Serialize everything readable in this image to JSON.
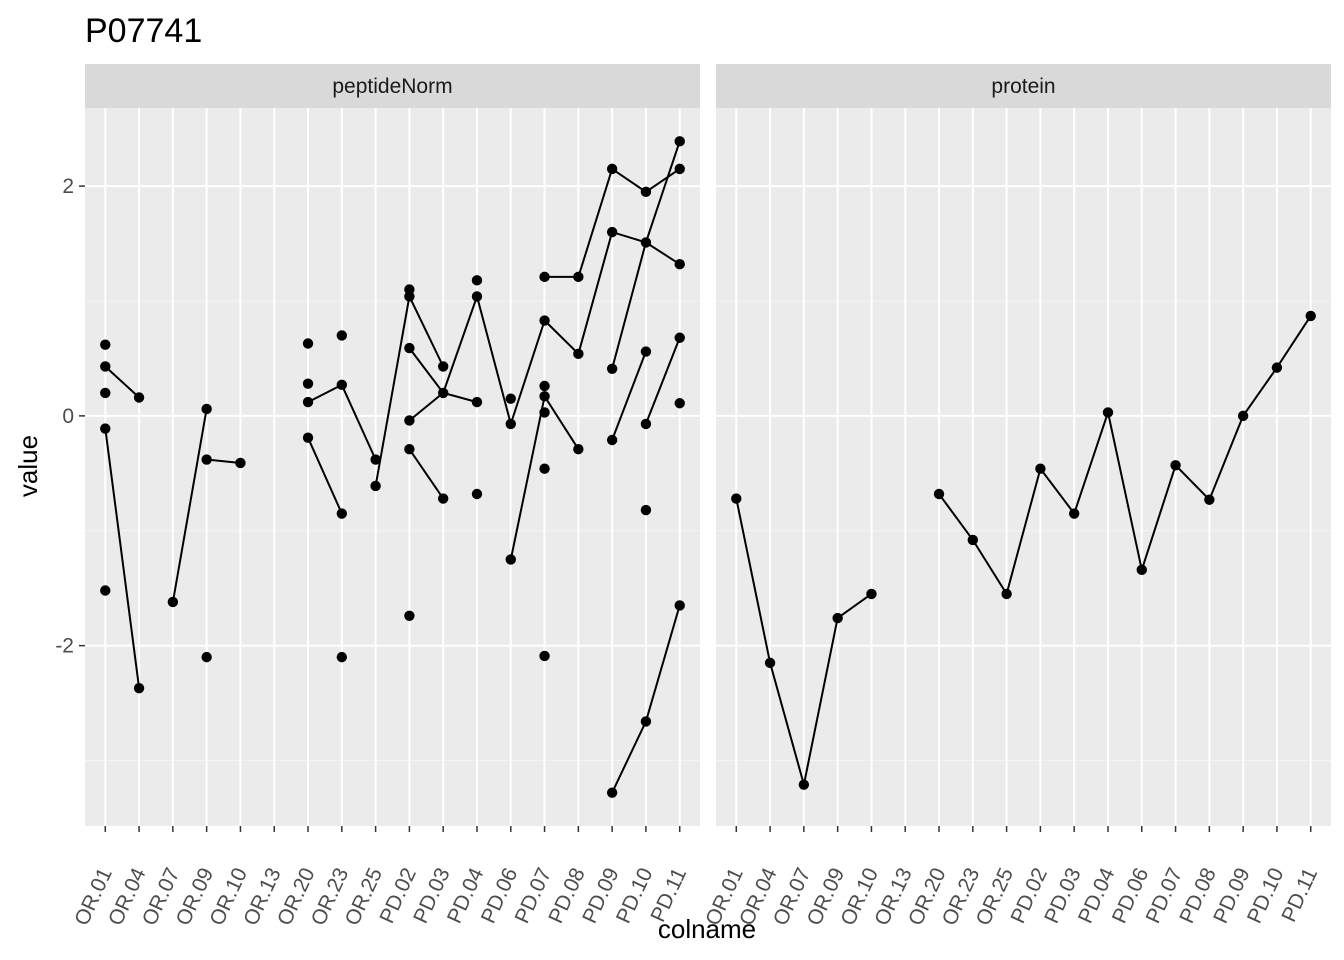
{
  "title": "P07741",
  "chart_data": {
    "type": "scatter",
    "title": "P07741",
    "xlabel": "colname",
    "ylabel": "value",
    "ylim": [
      -3.57,
      2.68
    ],
    "yticks": [
      -2,
      0,
      2
    ],
    "grid": true,
    "categories": [
      "OR.01",
      "OR.04",
      "OR.07",
      "OR.09",
      "OR.10",
      "OR.13",
      "OR.20",
      "OR.23",
      "OR.25",
      "PD.02",
      "PD.03",
      "PD.04",
      "PD.06",
      "PD.07",
      "PD.08",
      "PD.09",
      "PD.10",
      "PD.11"
    ],
    "panels": [
      {
        "name": "peptideNorm",
        "points": [
          {
            "x": "OR.01",
            "y": 0.62
          },
          {
            "x": "OR.01",
            "y": 0.43
          },
          {
            "x": "OR.01",
            "y": 0.2
          },
          {
            "x": "OR.01",
            "y": -0.11
          },
          {
            "x": "OR.01",
            "y": -1.52
          },
          {
            "x": "OR.04",
            "y": 0.16
          },
          {
            "x": "OR.04",
            "y": -2.37
          },
          {
            "x": "OR.07",
            "y": -1.62
          },
          {
            "x": "OR.09",
            "y": 0.06
          },
          {
            "x": "OR.09",
            "y": -0.38
          },
          {
            "x": "OR.09",
            "y": -2.1
          },
          {
            "x": "OR.10",
            "y": -0.41
          },
          {
            "x": "OR.20",
            "y": 0.63
          },
          {
            "x": "OR.20",
            "y": 0.28
          },
          {
            "x": "OR.20",
            "y": 0.12
          },
          {
            "x": "OR.20",
            "y": -0.19
          },
          {
            "x": "OR.23",
            "y": 0.7
          },
          {
            "x": "OR.23",
            "y": 0.27
          },
          {
            "x": "OR.23",
            "y": -0.85
          },
          {
            "x": "OR.23",
            "y": -2.1
          },
          {
            "x": "OR.25",
            "y": -0.38
          },
          {
            "x": "OR.25",
            "y": -0.61
          },
          {
            "x": "PD.02",
            "y": 1.1
          },
          {
            "x": "PD.02",
            "y": 1.04
          },
          {
            "x": "PD.02",
            "y": 0.59
          },
          {
            "x": "PD.02",
            "y": -0.04
          },
          {
            "x": "PD.02",
            "y": -0.29
          },
          {
            "x": "PD.02",
            "y": -1.74
          },
          {
            "x": "PD.03",
            "y": 0.43
          },
          {
            "x": "PD.03",
            "y": 0.2
          },
          {
            "x": "PD.03",
            "y": -0.72
          },
          {
            "x": "PD.04",
            "y": 1.18
          },
          {
            "x": "PD.04",
            "y": 1.04
          },
          {
            "x": "PD.04",
            "y": 0.12
          },
          {
            "x": "PD.04",
            "y": -0.68
          },
          {
            "x": "PD.06",
            "y": 0.15
          },
          {
            "x": "PD.06",
            "y": -0.07
          },
          {
            "x": "PD.06",
            "y": -1.25
          },
          {
            "x": "PD.07",
            "y": 1.21
          },
          {
            "x": "PD.07",
            "y": 0.83
          },
          {
            "x": "PD.07",
            "y": 0.26
          },
          {
            "x": "PD.07",
            "y": 0.17
          },
          {
            "x": "PD.07",
            "y": 0.03
          },
          {
            "x": "PD.07",
            "y": -0.46
          },
          {
            "x": "PD.07",
            "y": -2.09
          },
          {
            "x": "PD.08",
            "y": 1.21
          },
          {
            "x": "PD.08",
            "y": 0.54
          },
          {
            "x": "PD.08",
            "y": -0.29
          },
          {
            "x": "PD.09",
            "y": 2.15
          },
          {
            "x": "PD.09",
            "y": 1.6
          },
          {
            "x": "PD.09",
            "y": 0.41
          },
          {
            "x": "PD.09",
            "y": -0.21
          },
          {
            "x": "PD.09",
            "y": -3.28
          },
          {
            "x": "PD.10",
            "y": 1.95
          },
          {
            "x": "PD.10",
            "y": 1.51
          },
          {
            "x": "PD.10",
            "y": 0.56
          },
          {
            "x": "PD.10",
            "y": -0.07
          },
          {
            "x": "PD.10",
            "y": -0.82
          },
          {
            "x": "PD.10",
            "y": -2.66
          },
          {
            "x": "PD.11",
            "y": 2.39
          },
          {
            "x": "PD.11",
            "y": 2.15
          },
          {
            "x": "PD.11",
            "y": 1.32
          },
          {
            "x": "PD.11",
            "y": 0.68
          },
          {
            "x": "PD.11",
            "y": 0.11
          },
          {
            "x": "PD.11",
            "y": -1.65
          }
        ],
        "lines": [
          [
            [
              "OR.01",
              0.43
            ],
            [
              "OR.04",
              0.16
            ]
          ],
          [
            [
              "OR.01",
              -0.11
            ],
            [
              "OR.04",
              -2.37
            ]
          ],
          [
            [
              "OR.07",
              -1.62
            ],
            [
              "OR.09",
              0.06
            ]
          ],
          [
            [
              "OR.09",
              -0.38
            ],
            [
              "OR.10",
              -0.41
            ]
          ],
          [
            [
              "OR.20",
              0.12
            ],
            [
              "OR.23",
              0.27
            ],
            [
              "OR.25",
              -0.38
            ]
          ],
          [
            [
              "OR.20",
              -0.19
            ],
            [
              "OR.23",
              -0.85
            ]
          ],
          [
            [
              "OR.25",
              -0.61
            ],
            [
              "PD.02",
              1.04
            ],
            [
              "PD.03",
              0.43
            ]
          ],
          [
            [
              "PD.02",
              0.59
            ],
            [
              "PD.03",
              0.2
            ],
            [
              "PD.04",
              0.12
            ]
          ],
          [
            [
              "PD.02",
              -0.04
            ],
            [
              "PD.03",
              0.2
            ]
          ],
          [
            [
              "PD.02",
              -0.29
            ],
            [
              "PD.03",
              -0.72
            ]
          ],
          [
            [
              "PD.03",
              0.2
            ],
            [
              "PD.04",
              1.04
            ],
            [
              "PD.06",
              -0.07
            ],
            [
              "PD.07",
              0.83
            ],
            [
              "PD.08",
              0.54
            ],
            [
              "PD.09",
              1.6
            ],
            [
              "PD.10",
              1.51
            ],
            [
              "PD.11",
              1.32
            ]
          ],
          [
            [
              "PD.06",
              -1.25
            ],
            [
              "PD.07",
              0.17
            ],
            [
              "PD.08",
              -0.29
            ]
          ],
          [
            [
              "PD.07",
              1.21
            ],
            [
              "PD.08",
              1.21
            ],
            [
              "PD.09",
              2.15
            ],
            [
              "PD.10",
              1.95
            ],
            [
              "PD.11",
              2.15
            ]
          ],
          [
            [
              "PD.09",
              0.41
            ],
            [
              "PD.10",
              1.51
            ],
            [
              "PD.11",
              2.39
            ]
          ],
          [
            [
              "PD.09",
              -0.21
            ],
            [
              "PD.10",
              0.56
            ]
          ],
          [
            [
              "PD.09",
              -3.28
            ],
            [
              "PD.10",
              -2.66
            ],
            [
              "PD.11",
              -1.65
            ]
          ],
          [
            [
              "PD.10",
              -0.07
            ],
            [
              "PD.11",
              0.68
            ]
          ]
        ]
      },
      {
        "name": "protein",
        "points": [
          {
            "x": "OR.01",
            "y": -0.72
          },
          {
            "x": "OR.04",
            "y": -2.15
          },
          {
            "x": "OR.07",
            "y": -3.21
          },
          {
            "x": "OR.09",
            "y": -1.76
          },
          {
            "x": "OR.10",
            "y": -1.55
          },
          {
            "x": "OR.20",
            "y": -0.68
          },
          {
            "x": "OR.23",
            "y": -1.08
          },
          {
            "x": "OR.25",
            "y": -1.55
          },
          {
            "x": "PD.02",
            "y": -0.46
          },
          {
            "x": "PD.03",
            "y": -0.85
          },
          {
            "x": "PD.04",
            "y": 0.03
          },
          {
            "x": "PD.06",
            "y": -1.34
          },
          {
            "x": "PD.07",
            "y": -0.43
          },
          {
            "x": "PD.08",
            "y": -0.73
          },
          {
            "x": "PD.09",
            "y": 0.0
          },
          {
            "x": "PD.10",
            "y": 0.42
          },
          {
            "x": "PD.11",
            "y": 0.87
          }
        ],
        "lines": [
          [
            [
              "OR.01",
              -0.72
            ],
            [
              "OR.04",
              -2.15
            ],
            [
              "OR.07",
              -3.21
            ],
            [
              "OR.09",
              -1.76
            ],
            [
              "OR.10",
              -1.55
            ]
          ],
          [
            [
              "OR.20",
              -0.68
            ],
            [
              "OR.23",
              -1.08
            ],
            [
              "OR.25",
              -1.55
            ],
            [
              "PD.02",
              -0.46
            ],
            [
              "PD.03",
              -0.85
            ],
            [
              "PD.04",
              0.03
            ],
            [
              "PD.06",
              -1.34
            ],
            [
              "PD.07",
              -0.43
            ],
            [
              "PD.08",
              -0.73
            ],
            [
              "PD.09",
              0.0
            ],
            [
              "PD.10",
              0.42
            ],
            [
              "PD.11",
              0.87
            ]
          ]
        ]
      }
    ]
  }
}
